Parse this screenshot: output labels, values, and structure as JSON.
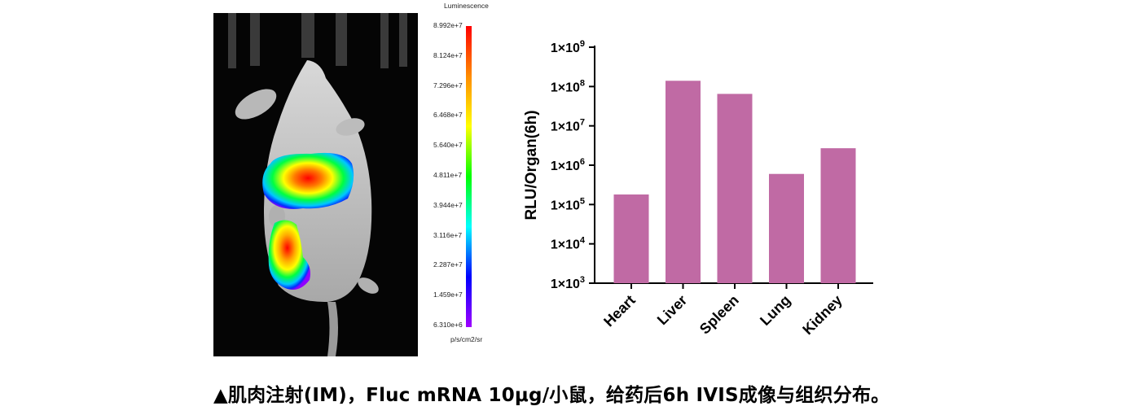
{
  "colorbar": {
    "title": "Luminescence",
    "unit": "p/s/cm2/sr",
    "ticks": [
      "8.992e+7",
      "8.124e+7",
      "7.296e+7",
      "6.468e+7",
      "5.640e+7",
      "4.811e+7",
      "3.944e+7",
      "3.116e+7",
      "2.287e+7",
      "1.459e+7",
      "6.310e+6"
    ],
    "colors": [
      "#ff0000",
      "#ff8c00",
      "#ffff00",
      "#00ff00",
      "#00ffff",
      "#0000ff",
      "#a000ff"
    ]
  },
  "chart_data": {
    "type": "bar",
    "categories": [
      "Heart",
      "Liver",
      "Spleen",
      "Lung",
      "Kidney"
    ],
    "values": [
      180000,
      140000000,
      65000000,
      600000,
      2700000
    ],
    "ylabel": "RLU/Organ(6h)",
    "yscale": "log",
    "ylim": [
      1000,
      1000000000
    ],
    "ytick_values": [
      1000,
      10000,
      100000,
      1000000,
      10000000,
      100000000,
      1000000000
    ],
    "ytick_mantissa": "1×10",
    "ytick_exponents": [
      "3",
      "4",
      "5",
      "6",
      "7",
      "8",
      "9"
    ],
    "bar_color": "#c06aa4",
    "grid": false
  },
  "caption": "▲肌肉注射(IM)，Fluc mRNA 10μg/小鼠，给药后6h IVIS成像与组织分布。"
}
